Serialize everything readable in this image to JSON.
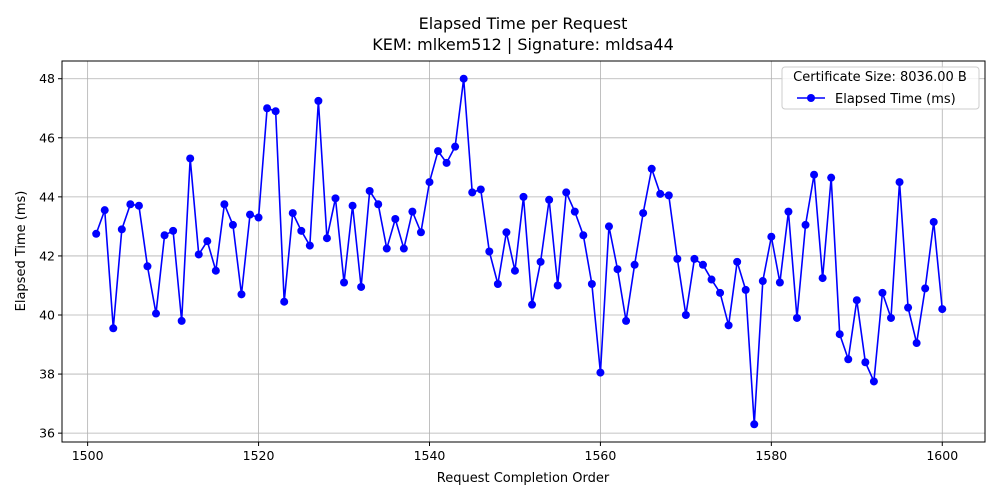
{
  "chart_data": {
    "type": "line",
    "title": "Elapsed Time per Request",
    "subtitle": "KEM: mlkem512 | Signature: mldsa44",
    "xlabel": "Request Completion Order",
    "ylabel": "Elapsed Time (ms)",
    "xlim": [
      1497,
      1605
    ],
    "ylim": [
      35.7,
      48.6
    ],
    "xticks": [
      1500,
      1520,
      1540,
      1560,
      1580,
      1600
    ],
    "yticks": [
      36,
      38,
      40,
      42,
      44,
      46,
      48
    ],
    "grid": true,
    "legend": {
      "title": "Certificate Size: 8036.00 B",
      "placement": "top-right",
      "entries": [
        "Elapsed Time (ms)"
      ]
    },
    "colors": {
      "series": "#0000ff",
      "grid": "#b0b0b0"
    },
    "series": [
      {
        "name": "Elapsed Time (ms)",
        "x": [
          1501,
          1502,
          1503,
          1504,
          1505,
          1506,
          1507,
          1508,
          1509,
          1510,
          1511,
          1512,
          1513,
          1514,
          1515,
          1516,
          1517,
          1518,
          1519,
          1520,
          1521,
          1522,
          1523,
          1524,
          1525,
          1526,
          1527,
          1528,
          1529,
          1530,
          1531,
          1532,
          1533,
          1534,
          1535,
          1536,
          1537,
          1538,
          1539,
          1540,
          1541,
          1542,
          1543,
          1544,
          1545,
          1546,
          1547,
          1548,
          1549,
          1550,
          1551,
          1552,
          1553,
          1554,
          1555,
          1556,
          1557,
          1558,
          1559,
          1560,
          1561,
          1562,
          1563,
          1564,
          1565,
          1566,
          1567,
          1568,
          1569,
          1570,
          1571,
          1572,
          1573,
          1574,
          1575,
          1576,
          1577,
          1578,
          1579,
          1580,
          1581,
          1582,
          1583,
          1584,
          1585,
          1586,
          1587,
          1588,
          1589,
          1590,
          1591,
          1592,
          1593,
          1594,
          1595,
          1596,
          1597,
          1598,
          1599,
          1600
        ],
        "values": [
          42.75,
          43.55,
          39.55,
          42.9,
          43.75,
          43.7,
          41.65,
          40.05,
          42.7,
          42.85,
          39.8,
          45.3,
          42.05,
          42.5,
          41.5,
          43.75,
          43.05,
          40.7,
          43.4,
          43.3,
          47.0,
          46.9,
          40.45,
          43.45,
          42.85,
          42.35,
          47.25,
          42.6,
          43.95,
          41.1,
          43.7,
          40.95,
          44.2,
          43.75,
          42.25,
          43.25,
          42.25,
          43.5,
          42.8,
          44.5,
          45.55,
          45.15,
          45.7,
          48.0,
          44.15,
          44.25,
          42.15,
          41.05,
          42.8,
          41.5,
          44.0,
          40.35,
          41.8,
          43.9,
          41.0,
          44.15,
          43.5,
          42.7,
          41.05,
          38.05,
          43.0,
          41.55,
          39.8,
          41.7,
          43.45,
          44.95,
          44.1,
          44.05,
          41.9,
          40.0,
          41.9,
          41.7,
          41.2,
          40.75,
          39.65,
          41.8,
          40.85,
          36.3,
          41.15,
          42.65,
          41.1,
          43.5,
          39.9,
          43.05,
          44.75,
          41.25,
          44.65,
          39.35,
          38.5,
          40.5,
          38.4,
          37.75,
          40.75,
          39.9,
          44.5,
          40.25,
          39.05,
          40.9,
          43.15,
          40.2
        ]
      }
    ]
  }
}
